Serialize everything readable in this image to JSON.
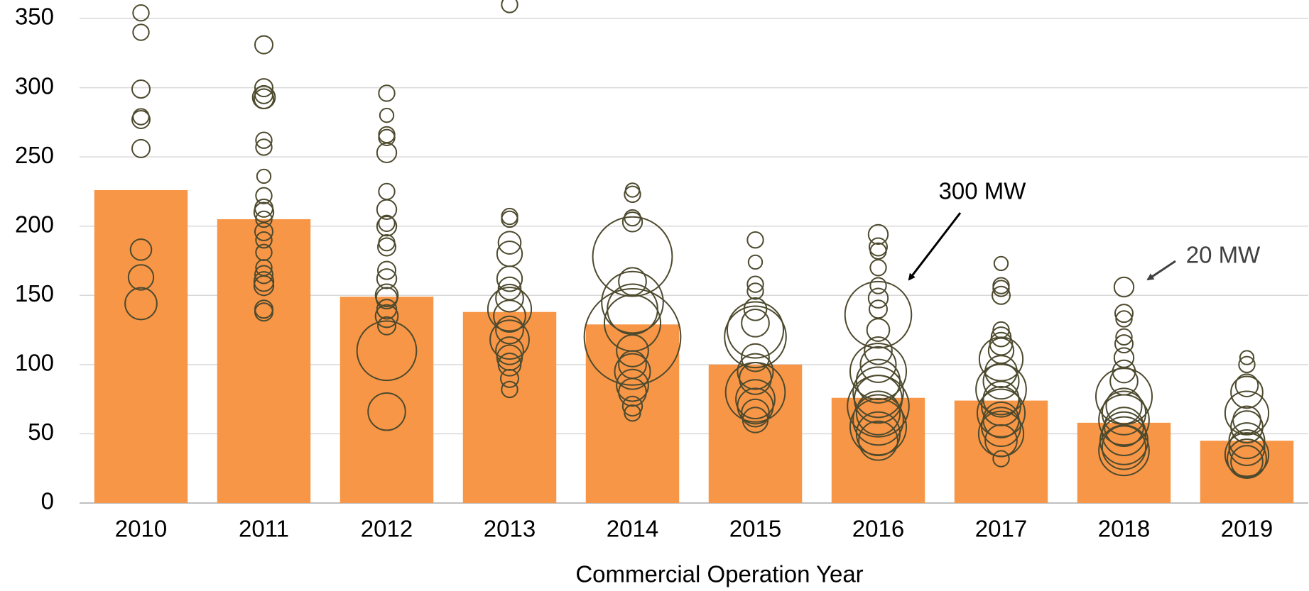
{
  "chart_data": {
    "type": "bar",
    "categories": [
      "2010",
      "2011",
      "2012",
      "2013",
      "2014",
      "2015",
      "2016",
      "2017",
      "2018",
      "2019"
    ],
    "values": [
      226,
      205,
      149,
      138,
      129,
      100,
      76,
      74,
      58,
      45
    ],
    "color": "#f79646",
    "bubble_color": "#4d4a2e",
    "bubbles": [
      {
        "values": [
          354,
          340,
          299,
          279,
          277,
          256,
          183,
          163,
          144
        ],
        "sizes": [
          20,
          20,
          25,
          20,
          25,
          25,
          35,
          50,
          80
        ]
      },
      {
        "values": [
          331,
          300,
          295,
          293,
          292,
          262,
          257,
          236,
          222,
          213,
          210,
          205,
          196,
          190,
          181,
          170,
          165,
          160,
          157,
          140,
          138
        ],
        "sizes": [
          25,
          25,
          25,
          40,
          30,
          20,
          20,
          15,
          20,
          25,
          30,
          20,
          25,
          20,
          20,
          20,
          25,
          30,
          30,
          25,
          25
        ]
      },
      {
        "values": [
          296,
          280,
          266,
          264,
          253,
          225,
          212,
          202,
          200,
          188,
          185,
          168,
          162,
          150,
          148,
          140,
          135,
          128,
          110,
          66
        ],
        "sizes": [
          20,
          15,
          20,
          20,
          30,
          20,
          30,
          20,
          30,
          20,
          25,
          25,
          30,
          40,
          35,
          30,
          40,
          25,
          280,
          110
        ]
      },
      {
        "values": [
          360,
          207,
          205,
          188,
          180,
          162,
          155,
          148,
          140,
          135,
          125,
          118,
          110,
          105,
          100,
          90,
          82
        ],
        "sizes": [
          20,
          20,
          20,
          40,
          50,
          50,
          40,
          60,
          150,
          80,
          60,
          120,
          60,
          50,
          40,
          25,
          20
        ]
      },
      {
        "values": [
          226,
          223,
          206,
          203,
          178,
          160,
          145,
          140,
          130,
          120,
          110,
          100,
          95,
          85,
          80,
          70,
          65
        ],
        "sizes": [
          15,
          20,
          20,
          30,
          500,
          60,
          300,
          200,
          250,
          737,
          80,
          60,
          100,
          80,
          60,
          30,
          20
        ]
      },
      {
        "values": [
          190,
          174,
          158,
          153,
          140,
          130,
          125,
          120,
          105,
          95,
          90,
          80,
          75,
          70,
          65,
          60
        ],
        "sizes": [
          20,
          15,
          20,
          20,
          40,
          60,
          250,
          300,
          60,
          100,
          80,
          280,
          120,
          100,
          60,
          50
        ]
      },
      {
        "values": [
          194,
          185,
          182,
          170,
          157,
          148,
          140,
          136,
          125,
          110,
          100,
          95,
          88,
          80,
          75,
          70,
          65,
          60,
          55,
          50,
          45
        ],
        "sizes": [
          30,
          25,
          20,
          20,
          20,
          30,
          25,
          350,
          40,
          60,
          100,
          250,
          150,
          200,
          180,
          300,
          150,
          200,
          250,
          150,
          120
        ]
      },
      {
        "values": [
          173,
          157,
          155,
          150,
          125,
          120,
          115,
          110,
          104,
          95,
          88,
          82,
          75,
          70,
          65,
          60,
          55,
          50,
          45,
          32
        ],
        "sizes": [
          15,
          20,
          20,
          25,
          20,
          30,
          40,
          50,
          150,
          80,
          100,
          200,
          100,
          120,
          180,
          100,
          120,
          160,
          80,
          20
        ]
      },
      {
        "values": [
          156,
          137,
          133,
          120,
          115,
          105,
          95,
          88,
          77,
          70,
          65,
          60,
          55,
          50,
          45,
          40,
          38
        ],
        "sizes": [
          30,
          25,
          20,
          20,
          25,
          30,
          40,
          60,
          250,
          100,
          150,
          200,
          120,
          150,
          180,
          150,
          200
        ]
      },
      {
        "values": [
          105,
          100,
          85,
          80,
          65,
          60,
          55,
          45,
          40,
          35,
          32,
          30
        ],
        "sizes": [
          15,
          20,
          40,
          80,
          150,
          60,
          80,
          100,
          100,
          150,
          120,
          80
        ]
      }
    ],
    "ylim": [
      0,
      350
    ],
    "yticks": [
      0,
      50,
      100,
      150,
      200,
      250,
      300,
      350
    ],
    "grid": true,
    "x_label": "Commercial Operation Year",
    "annotations": [
      "300 MW",
      "20 MW"
    ]
  }
}
